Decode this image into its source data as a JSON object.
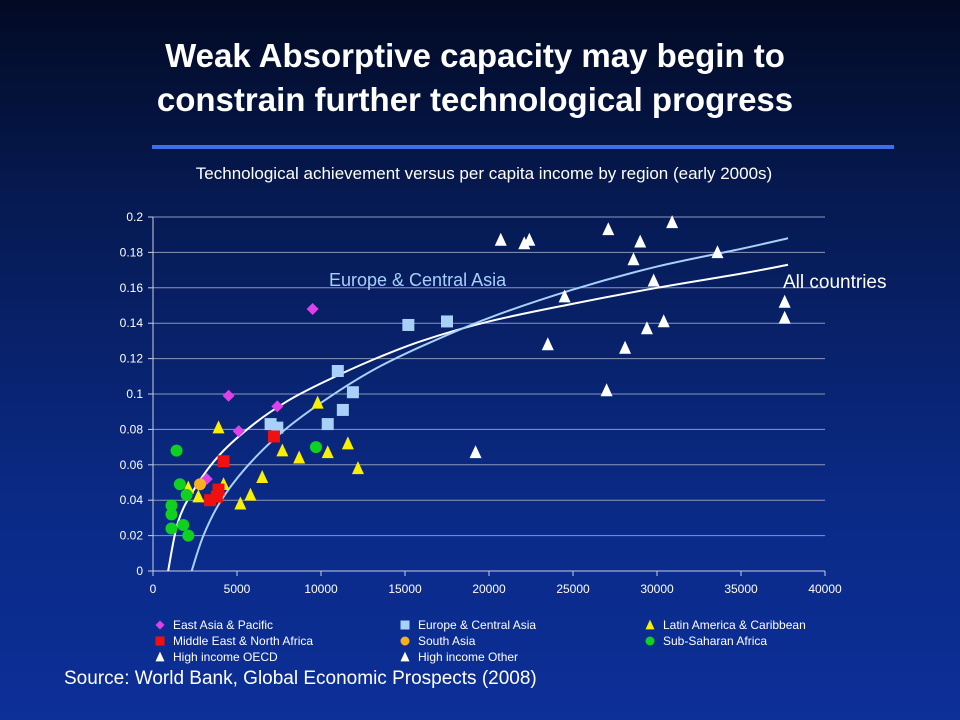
{
  "slide": {
    "title_line1": "Weak Absorptive capacity may begin to",
    "title_line2": "constrain further technological progress",
    "source": "Source: World Bank, Global Economic Prospects (2008)"
  },
  "chart_data": {
    "type": "scatter",
    "title": "Technological achievement versus per capita income by region (early 2000s)",
    "xlabel": "",
    "ylabel": "",
    "xlim": [
      0,
      40000
    ],
    "ylim": [
      0,
      0.2
    ],
    "x_ticks": [
      0,
      5000,
      10000,
      15000,
      20000,
      25000,
      30000,
      35000,
      40000
    ],
    "y_ticks": [
      0,
      0.02,
      0.04,
      0.06,
      0.08,
      0.1,
      0.12,
      0.14,
      0.16,
      0.18,
      0.2
    ],
    "y_tick_labels": [
      "0",
      "0.02",
      "0.04",
      "0.06",
      "0.08",
      "0.1",
      "0.12",
      "0.14",
      "0.16",
      "0.18",
      "0.2"
    ],
    "grid": "horizontal",
    "legend_position": "bottom",
    "series": [
      {
        "name": "East Asia & Pacific",
        "marker": "diamond",
        "color": "#e040e8",
        "points": [
          [
            3200,
            0.052
          ],
          [
            4500,
            0.099
          ],
          [
            5100,
            0.079
          ],
          [
            7400,
            0.093
          ],
          [
            9500,
            0.148
          ]
        ]
      },
      {
        "name": "Europe & Central Asia",
        "marker": "square",
        "color": "#a8d0f8",
        "points": [
          [
            7000,
            0.083
          ],
          [
            7400,
            0.081
          ],
          [
            10400,
            0.083
          ],
          [
            11000,
            0.113
          ],
          [
            11300,
            0.091
          ],
          [
            11900,
            0.101
          ],
          [
            15200,
            0.139
          ],
          [
            17500,
            0.141
          ]
        ]
      },
      {
        "name": "Latin America & Caribbean",
        "marker": "triangle",
        "color": "#f8f000",
        "points": [
          [
            2100,
            0.047
          ],
          [
            2700,
            0.042
          ],
          [
            3900,
            0.081
          ],
          [
            4200,
            0.049
          ],
          [
            5200,
            0.038
          ],
          [
            5800,
            0.043
          ],
          [
            6500,
            0.053
          ],
          [
            7700,
            0.068
          ],
          [
            8700,
            0.064
          ],
          [
            9800,
            0.095
          ],
          [
            10400,
            0.067
          ],
          [
            11600,
            0.072
          ],
          [
            12200,
            0.058
          ]
        ]
      },
      {
        "name": "Middle East & North Africa",
        "marker": "square",
        "color": "#f01010",
        "points": [
          [
            3400,
            0.04
          ],
          [
            3800,
            0.042
          ],
          [
            3900,
            0.046
          ],
          [
            4200,
            0.062
          ],
          [
            7200,
            0.076
          ]
        ]
      },
      {
        "name": "South Asia",
        "marker": "circle",
        "color": "#f8b020",
        "points": [
          [
            2800,
            0.049
          ]
        ]
      },
      {
        "name": "Sub-Saharan Africa",
        "marker": "circle",
        "color": "#10d020",
        "points": [
          [
            1100,
            0.024
          ],
          [
            1100,
            0.032
          ],
          [
            1100,
            0.037
          ],
          [
            1400,
            0.068
          ],
          [
            1600,
            0.049
          ],
          [
            1800,
            0.026
          ],
          [
            2000,
            0.043
          ],
          [
            2100,
            0.02
          ],
          [
            9700,
            0.07
          ]
        ]
      },
      {
        "name": "High income OECD",
        "marker": "triangle",
        "color": "#ffffff",
        "points": [
          [
            19200,
            0.067
          ],
          [
            20700,
            0.187
          ],
          [
            22100,
            0.185
          ],
          [
            22400,
            0.187
          ],
          [
            23500,
            0.128
          ],
          [
            24500,
            0.155
          ],
          [
            27000,
            0.102
          ],
          [
            27100,
            0.193
          ],
          [
            28100,
            0.126
          ],
          [
            28600,
            0.176
          ],
          [
            29000,
            0.186
          ],
          [
            29400,
            0.137
          ],
          [
            29800,
            0.164
          ],
          [
            30400,
            0.141
          ],
          [
            30900,
            0.197
          ],
          [
            33600,
            0.18
          ],
          [
            37600,
            0.143
          ],
          [
            37600,
            0.152
          ]
        ]
      },
      {
        "name": "High income Other",
        "marker": "triangle",
        "color": "#ffffff",
        "points": []
      }
    ],
    "trendlines": [
      {
        "label": "All countries",
        "color": "#ffffff",
        "points": [
          [
            900,
            0.0
          ],
          [
            1500,
            0.028
          ],
          [
            2500,
            0.047
          ],
          [
            4000,
            0.066
          ],
          [
            6000,
            0.083
          ],
          [
            8000,
            0.096
          ],
          [
            10000,
            0.106
          ],
          [
            13000,
            0.119
          ],
          [
            16000,
            0.13
          ],
          [
            20000,
            0.141
          ],
          [
            25000,
            0.151
          ],
          [
            30000,
            0.16
          ],
          [
            35000,
            0.168
          ],
          [
            37800,
            0.173
          ]
        ]
      },
      {
        "label": "Europe & Central Asia",
        "color": "#a8d0f8",
        "points": [
          [
            2300,
            0.0
          ],
          [
            3000,
            0.02
          ],
          [
            4000,
            0.039
          ],
          [
            5500,
            0.058
          ],
          [
            7500,
            0.077
          ],
          [
            10000,
            0.095
          ],
          [
            13000,
            0.113
          ],
          [
            16000,
            0.127
          ],
          [
            20000,
            0.143
          ],
          [
            25000,
            0.159
          ],
          [
            30000,
            0.172
          ],
          [
            35000,
            0.182
          ],
          [
            37800,
            0.188
          ]
        ]
      }
    ]
  }
}
